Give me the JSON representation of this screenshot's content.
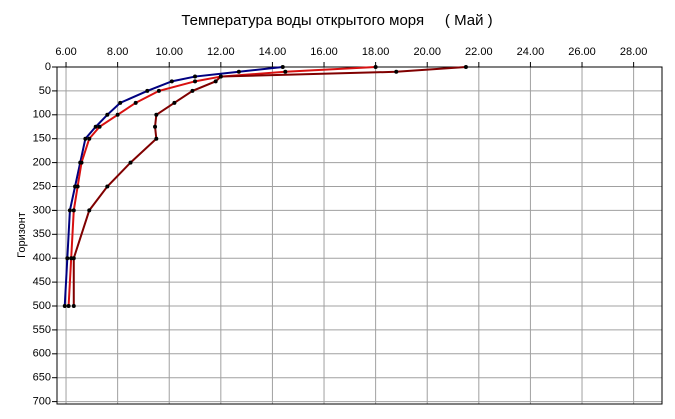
{
  "chart_data": {
    "type": "line",
    "title": "Температура воды открытого моря     ( Май )",
    "ylabel": "Горизонт",
    "y": [
      0,
      10,
      20,
      30,
      50,
      75,
      100,
      125,
      150,
      200,
      250,
      300,
      400,
      500
    ],
    "series": [
      {
        "color": "#000080",
        "values": [
          14.4,
          12.7,
          11.0,
          10.1,
          9.15,
          8.1,
          7.6,
          7.15,
          6.75,
          6.55,
          6.35,
          6.15,
          6.05,
          5.95
        ]
      },
      {
        "color": "#d81010",
        "values": [
          18.0,
          14.5,
          12.0,
          11.0,
          9.6,
          8.7,
          8.0,
          7.3,
          6.9,
          6.6,
          6.45,
          6.3,
          6.2,
          6.1
        ]
      },
      {
        "color": "#800000",
        "values": [
          21.5,
          18.8,
          12.0,
          11.8,
          10.9,
          10.2,
          9.5,
          9.45,
          9.5,
          8.5,
          7.6,
          6.9,
          6.3,
          6.3
        ]
      }
    ],
    "xlim": [
      5.65,
      29.1
    ],
    "xticks": [
      {
        "value": 6,
        "label": "6.00"
      },
      {
        "value": 8,
        "label": "8.00"
      },
      {
        "value": 10,
        "label": "10.00"
      },
      {
        "value": 12,
        "label": "12.00"
      },
      {
        "value": 14,
        "label": "14.00"
      },
      {
        "value": 16,
        "label": "16.00"
      },
      {
        "value": 18,
        "label": "18.00"
      },
      {
        "value": 20,
        "label": "20.00"
      },
      {
        "value": 22,
        "label": "22.00"
      },
      {
        "value": 24,
        "label": "24.00"
      },
      {
        "value": 26,
        "label": "26.00"
      },
      {
        "value": 28,
        "label": "28.00"
      }
    ],
    "ylim": [
      0,
      705
    ],
    "yticks": [
      0,
      50,
      100,
      150,
      200,
      250,
      300,
      350,
      400,
      450,
      500,
      550,
      600,
      650,
      700
    ],
    "y_inverted": true,
    "grid": true
  }
}
